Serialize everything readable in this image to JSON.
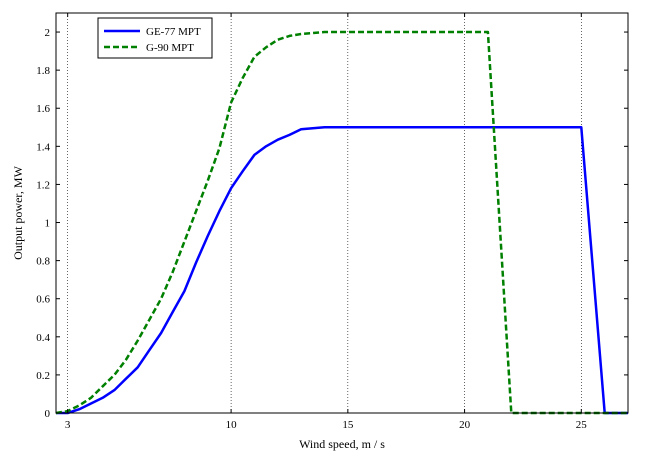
{
  "chart_data": {
    "type": "line",
    "xlabel": "Wind speed, m / s",
    "ylabel": "Output power, MW",
    "xlim": [
      2.5,
      27
    ],
    "ylim": [
      0,
      2.1
    ],
    "xticks": [
      3,
      10,
      15,
      20,
      25
    ],
    "yticks": [
      0,
      0.2,
      0.4,
      0.6,
      0.8,
      1,
      1.2,
      1.4,
      1.6,
      1.8,
      2
    ],
    "grid": "vertical-dotted",
    "legend_position": "top-left",
    "series": [
      {
        "name": "GE-77 MPT",
        "color": "#0000ff",
        "dash": "solid",
        "x": [
          2.5,
          3,
          3.5,
          4,
          4.5,
          5,
          5.5,
          6,
          6.5,
          7,
          7.5,
          8,
          8.5,
          9,
          9.5,
          10,
          10.5,
          11,
          11.5,
          12,
          12.5,
          13,
          13.5,
          14,
          14.5,
          15,
          16,
          18,
          20,
          22,
          24,
          25,
          26,
          27
        ],
        "y": [
          0,
          0,
          0.02,
          0.05,
          0.08,
          0.12,
          0.18,
          0.24,
          0.33,
          0.42,
          0.53,
          0.64,
          0.79,
          0.93,
          1.06,
          1.18,
          1.27,
          1.355,
          1.4,
          1.435,
          1.46,
          1.49,
          1.495,
          1.5,
          1.5,
          1.5,
          1.5,
          1.5,
          1.5,
          1.5,
          1.5,
          1.5,
          0,
          0
        ]
      },
      {
        "name": "G-90 MPT",
        "color": "#008000",
        "dash": "dashed",
        "x": [
          2.5,
          3,
          3.5,
          4,
          4.5,
          5,
          5.5,
          6,
          6.5,
          7,
          7.5,
          8,
          8.5,
          9,
          9.5,
          10,
          10.5,
          11,
          11.5,
          12,
          12.5,
          13,
          14,
          15,
          17,
          19,
          21,
          22,
          24,
          26,
          27
        ],
        "y": [
          0,
          0.01,
          0.04,
          0.08,
          0.14,
          0.2,
          0.28,
          0.38,
          0.49,
          0.6,
          0.74,
          0.9,
          1.06,
          1.22,
          1.39,
          1.63,
          1.76,
          1.87,
          1.92,
          1.96,
          1.98,
          1.99,
          2,
          2,
          2,
          2,
          2,
          0,
          0,
          0,
          0
        ]
      }
    ]
  }
}
